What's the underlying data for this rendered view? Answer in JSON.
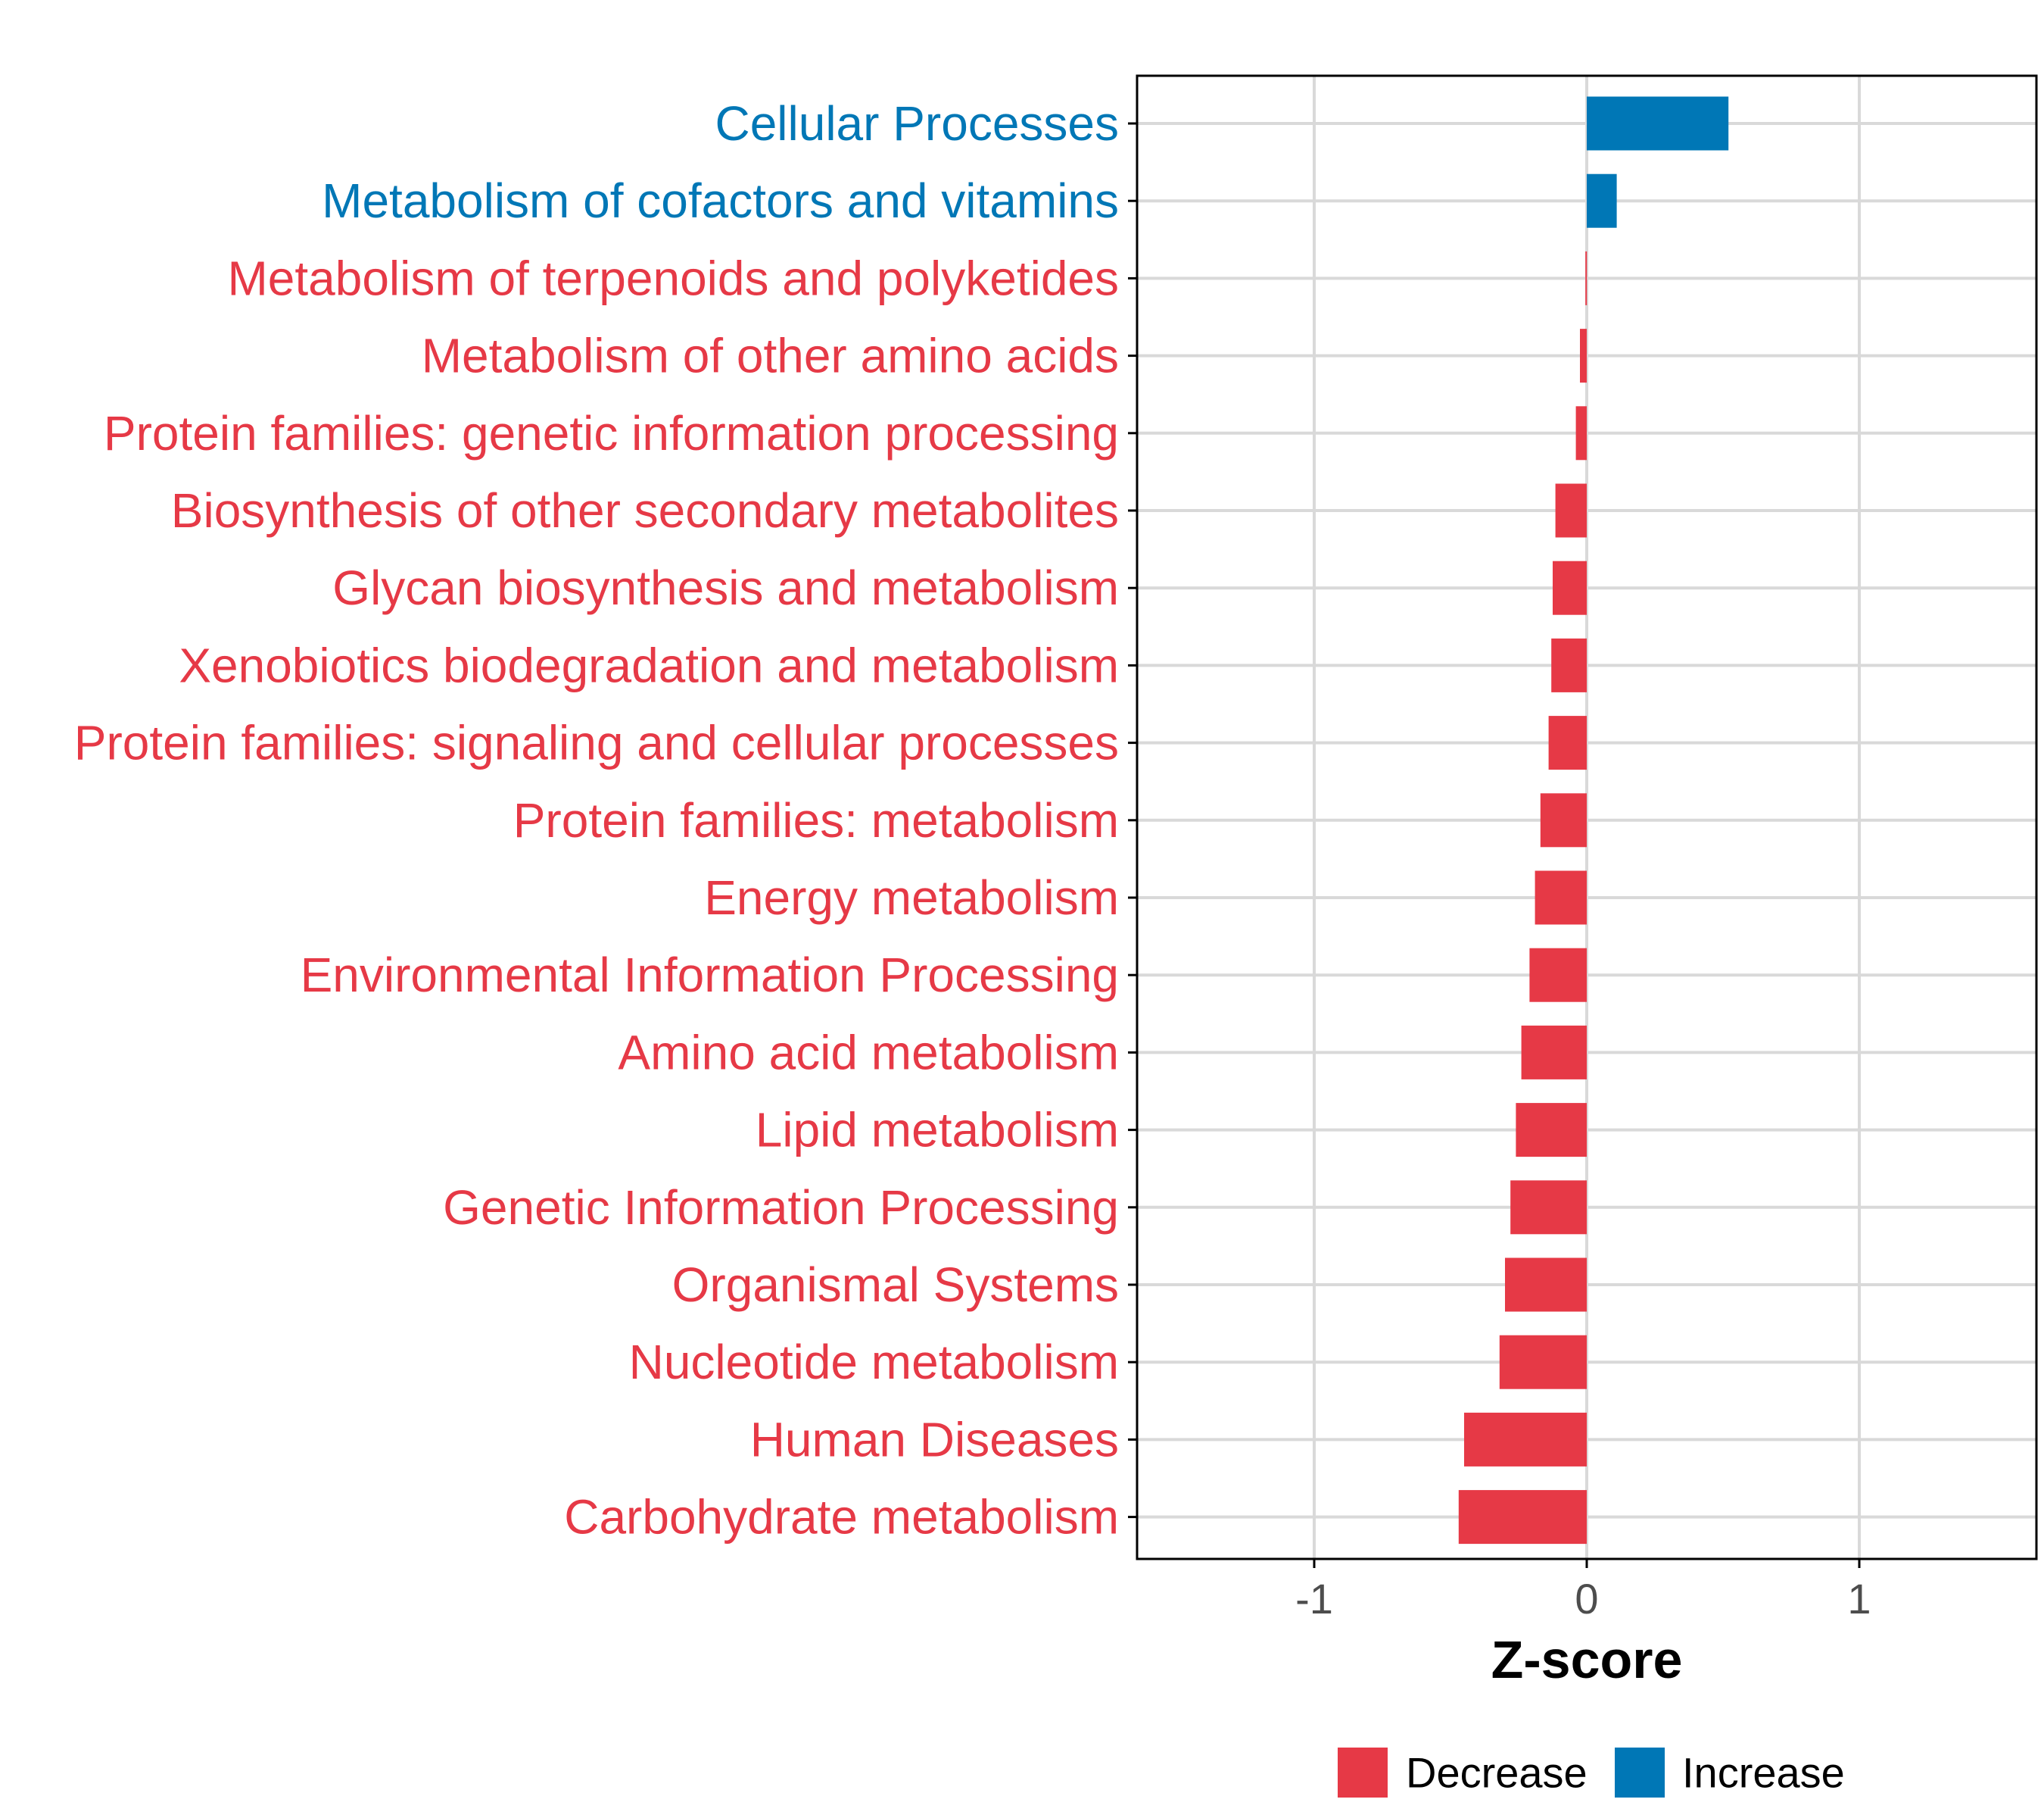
{
  "chart_data": {
    "type": "bar",
    "orientation": "horizontal",
    "title": "",
    "xlabel": "Z-score",
    "ylabel": "",
    "xlim": [
      -1.65,
      1.65
    ],
    "xticks": [
      -1,
      0,
      1
    ],
    "xtick_labels": [
      "-1",
      "0",
      "1"
    ],
    "grid": true,
    "categories": [
      "Cellular Processes",
      "Metabolism of cofactors and vitamins",
      "Metabolism of terpenoids and polyketides",
      "Metabolism of other amino acids",
      "Protein families: genetic information processing",
      "Biosynthesis of other secondary metabolites",
      "Glycan biosynthesis and metabolism",
      "Xenobiotics biodegradation and metabolism",
      "Protein families: signaling and cellular processes",
      "Protein families: metabolism",
      "Energy metabolism",
      "Environmental Information Processing",
      "Amino acid metabolism",
      "Lipid metabolism",
      "Genetic Information Processing",
      "Organismal Systems",
      "Nucleotide metabolism",
      "Human Diseases",
      "Carbohydrate metabolism"
    ],
    "values": [
      0.52,
      0.11,
      -0.005,
      -0.025,
      -0.04,
      -0.115,
      -0.125,
      -0.13,
      -0.14,
      -0.17,
      -0.19,
      -0.21,
      -0.24,
      -0.26,
      -0.28,
      -0.3,
      -0.32,
      -0.45,
      -0.47
    ],
    "groups": [
      "Increase",
      "Increase",
      "Decrease",
      "Decrease",
      "Decrease",
      "Decrease",
      "Decrease",
      "Decrease",
      "Decrease",
      "Decrease",
      "Decrease",
      "Decrease",
      "Decrease",
      "Decrease",
      "Decrease",
      "Decrease",
      "Decrease",
      "Decrease",
      "Decrease"
    ],
    "legend": {
      "position": "bottom",
      "entries": [
        {
          "label": "Decrease",
          "color": "#e63946"
        },
        {
          "label": "Increase",
          "color": "#0077b6"
        }
      ]
    }
  },
  "colors": {
    "decrease": "#e63946",
    "increase": "#0077b6",
    "grid": "#d9d9d9",
    "axis": "#000000"
  }
}
